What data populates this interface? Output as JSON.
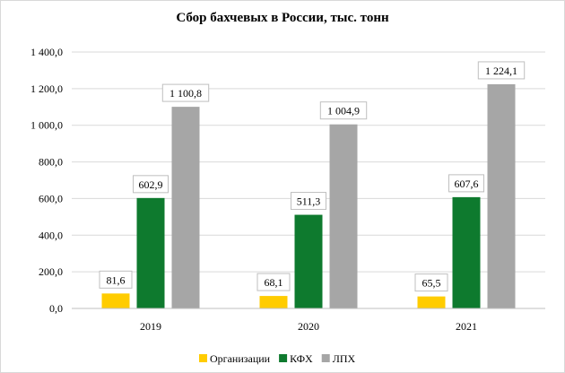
{
  "chart_data": {
    "type": "bar",
    "title": "Сбор бахчевых в России, тыс. тонн",
    "categories": [
      "2019",
      "2020",
      "2021"
    ],
    "series": [
      {
        "name": "Организации",
        "color": "#FFCC00",
        "values": [
          81.6,
          68.1,
          65.5
        ],
        "labels": [
          "81,6",
          "68,1",
          "65,5"
        ]
      },
      {
        "name": "КФХ",
        "color": "#0E7A2E",
        "values": [
          602.9,
          511.3,
          607.6
        ],
        "labels": [
          "602,9",
          "511,3",
          "607,6"
        ]
      },
      {
        "name": "ЛПХ",
        "color": "#A6A6A6",
        "values": [
          1100.8,
          1004.9,
          1224.1
        ],
        "labels": [
          "1 100,8",
          "1 004,9",
          "1 224,1"
        ]
      }
    ],
    "ylim": [
      0,
      1400
    ],
    "yticks": [
      0,
      200,
      400,
      600,
      800,
      1000,
      1200,
      1400
    ],
    "ytick_labels": [
      "0,0",
      "200,0",
      "400,0",
      "600,0",
      "800,0",
      "1 000,0",
      "1 200,0",
      "1 400,0"
    ],
    "grid": true,
    "legend_position": "bottom"
  }
}
